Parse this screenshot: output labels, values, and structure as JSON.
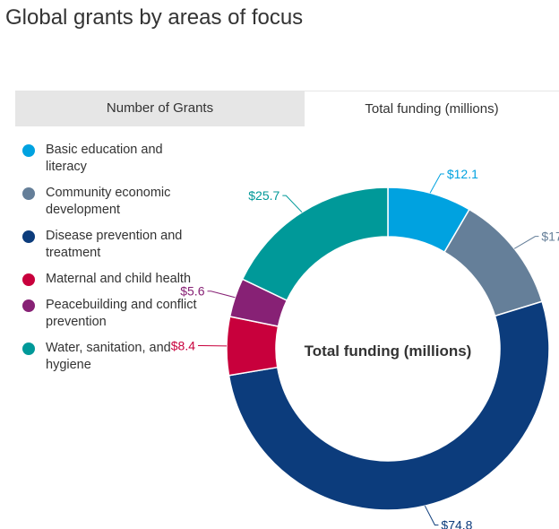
{
  "title": "Global grants by areas of focus",
  "tabs": [
    {
      "label": "Number of Grants",
      "active": false
    },
    {
      "label": "Total funding (millions)",
      "active": true
    }
  ],
  "center_label": "Total funding (millions)",
  "chart_data": {
    "type": "pie",
    "variant": "donut",
    "categories": [
      "Basic education and literacy",
      "Community economic development",
      "Disease prevention and treatment",
      "Maternal and child health",
      "Peacebuilding and conflict prevention",
      "Water, sanitation, and hygiene"
    ],
    "values": [
      12.1,
      17,
      74.8,
      8.4,
      5.6,
      25.7
    ],
    "data_labels": [
      "$12.1",
      "$17",
      "$74.8",
      "$8.4",
      "$5.6",
      "$25.7"
    ],
    "colors": [
      "#00a2e0",
      "#657f99",
      "#0c3c7c",
      "#c8003c",
      "#872175",
      "#009999"
    ],
    "legend_position": "left"
  }
}
